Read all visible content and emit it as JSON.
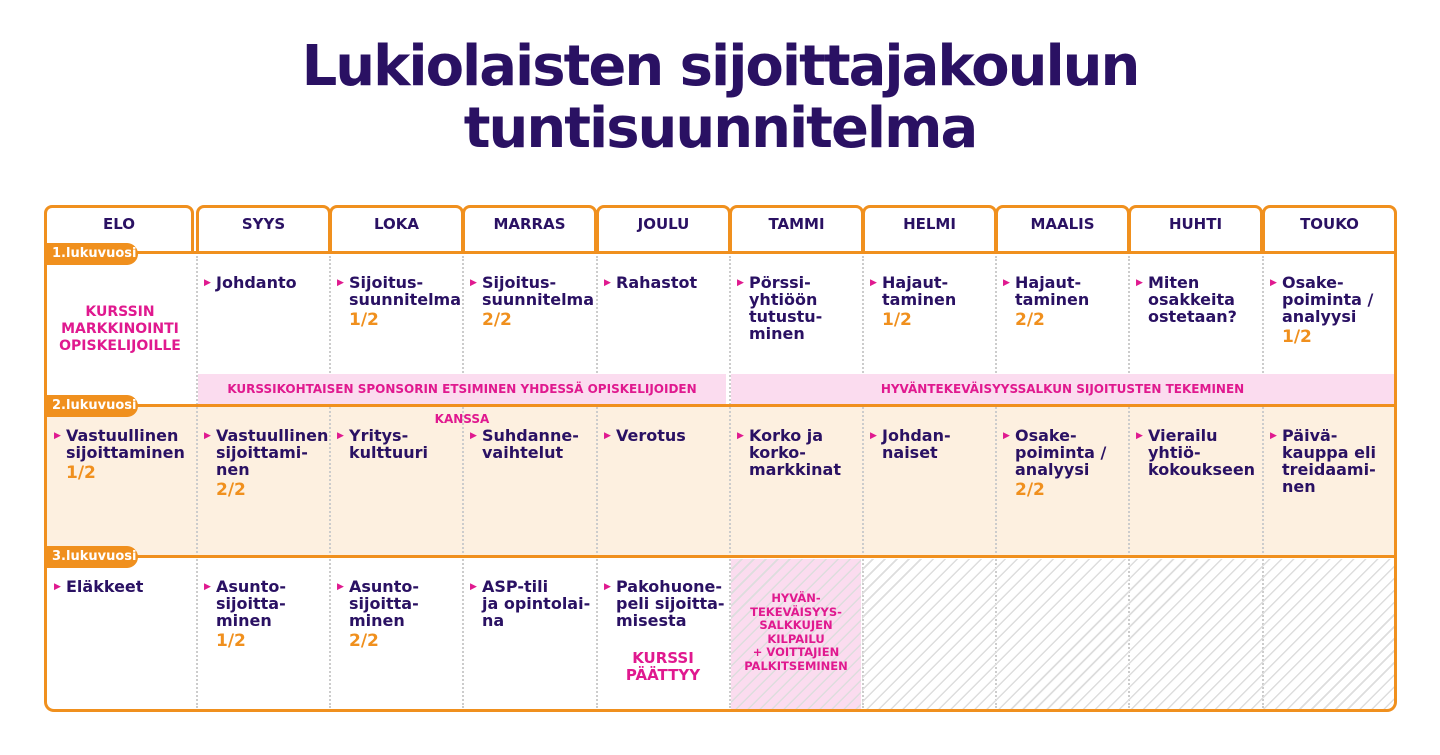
{
  "title": {
    "line1": "Lukiolaisten sijoittajakoulun",
    "line2": "tuntisuunnitelma"
  },
  "months": [
    "ELO",
    "SYYS",
    "LOKA",
    "MARRAS",
    "JOULU",
    "TAMMI",
    "HELMI",
    "MAALIS",
    "HUHTI",
    "TOUKO"
  ],
  "years": [
    "1.lukuvuosi",
    "2.lukuvuosi",
    "3.lukuvuosi"
  ],
  "colors": {
    "orange": "#f0901e",
    "purple": "#2a1163",
    "magenta": "#e0198f",
    "pink": "#fbdcef",
    "peach": "#fdf0e0"
  },
  "row1": {
    "marketing": "KURSSIN\nMARKKINOINTI\nOPISKELIJOILLE",
    "cells": [
      {
        "text": "Johdanto",
        "frac": ""
      },
      {
        "text": "Sijoitus-\nsuunnitelma",
        "frac": "1/2"
      },
      {
        "text": "Sijoitus-\nsuunnitelma",
        "frac": "2/2"
      },
      {
        "text": "Rahastot",
        "frac": ""
      },
      {
        "text": "Pörssi-\nyhtiöön\ntutustu-\nminen",
        "frac": ""
      },
      {
        "text": "Hajaut-\ntaminen",
        "frac": "1/2"
      },
      {
        "text": "Hajaut-\ntaminen",
        "frac": "2/2"
      },
      {
        "text": "Miten\nosakkeita\nostetaan?",
        "frac": ""
      },
      {
        "text": "Osake-\npoiminta /\nanalyysi",
        "frac": "1/2"
      }
    ],
    "span1": "KURSSIKOHTAISEN SPONSORIN ETSIMINEN YHDESSÄ OPISKELIJOIDEN KANSSA",
    "span2": "HYVÄNTEKEVÄISYYSSALKUN SIJOITUSTEN TEKEMINEN"
  },
  "row2": {
    "cells": [
      {
        "text": "Vastuullinen\nsijoittaminen",
        "frac": "1/2"
      },
      {
        "text": "Vastuullinen\nsijoittami-\nnen",
        "frac": "2/2"
      },
      {
        "text": "Yritys-\nkulttuuri",
        "frac": ""
      },
      {
        "text": "Suhdanne-\nvaihtelut",
        "frac": ""
      },
      {
        "text": "Verotus",
        "frac": ""
      },
      {
        "text": "Korko ja\nkorko-\nmarkkinat",
        "frac": ""
      },
      {
        "text": "Johdan-\nnaiset",
        "frac": ""
      },
      {
        "text": "Osake-\npoiminta /\nanalyysi",
        "frac": "2/2"
      },
      {
        "text": "Vierailu\nyhtiö-\nkokoukseen",
        "frac": ""
      },
      {
        "text": "Päivä-\nkauppa eli\ntreidaami-\nnen",
        "frac": ""
      }
    ]
  },
  "row3": {
    "cells": [
      {
        "text": "Eläkkeet",
        "frac": ""
      },
      {
        "text": "Asunto-\nsijoitta-\nminen",
        "frac": "1/2"
      },
      {
        "text": "Asunto-\nsijoitta-\nminen",
        "frac": "2/2"
      },
      {
        "text": "ASP-tili\nja opintolai-\nna",
        "frac": ""
      },
      {
        "text": "Pakohuone-\npeli sijoitta-\nmisesta",
        "frac": ""
      }
    ],
    "course_end": "KURSSI\nPÄÄTTYY",
    "competition": "HYVÄN-\nTEKEVÄISYYS-\nSALKKUJEN\nKILPAILU\n+ VOITTAJIEN\nPALKITSEMINEN"
  }
}
